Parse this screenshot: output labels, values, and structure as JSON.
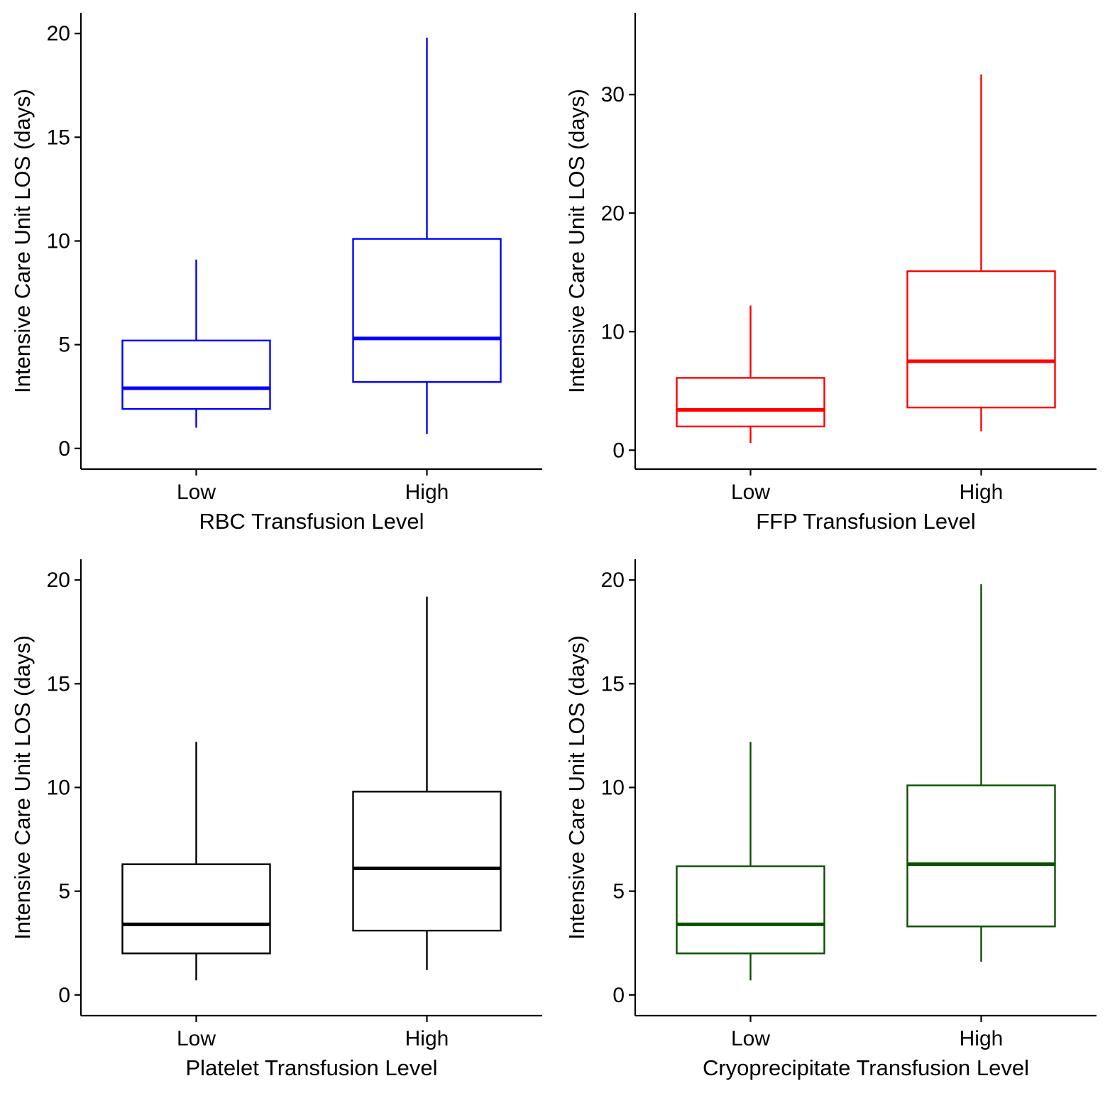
{
  "chart_data": [
    {
      "type": "box",
      "ylabel": "Intensive Care Unit LOS (days)",
      "xlabel": "RBC Transfusion Level",
      "color": "#0000ff",
      "categories": [
        "Low",
        "High"
      ],
      "ylim": [
        -1,
        21
      ],
      "yticks": [
        0,
        5,
        10,
        15,
        20
      ],
      "boxes": [
        {
          "category": "Low",
          "whisker_low": 1.0,
          "q1": 1.9,
          "median": 2.9,
          "q3": 5.2,
          "whisker_high": 9.1
        },
        {
          "category": "High",
          "whisker_low": 0.7,
          "q1": 3.2,
          "median": 5.3,
          "q3": 10.1,
          "whisker_high": 19.8
        }
      ]
    },
    {
      "type": "box",
      "ylabel": "Intensive Care Unit LOS (days)",
      "xlabel": "FFP Transfusion Level",
      "color": "#ff0000",
      "categories": [
        "Low",
        "High"
      ],
      "ylim": [
        -1.6,
        36.9
      ],
      "yticks": [
        0,
        10,
        20,
        30
      ],
      "boxes": [
        {
          "category": "Low",
          "whisker_low": 0.6,
          "q1": 2.0,
          "median": 3.4,
          "q3": 6.1,
          "whisker_high": 12.2
        },
        {
          "category": "High",
          "whisker_low": 1.6,
          "q1": 3.6,
          "median": 7.5,
          "q3": 15.1,
          "whisker_high": 31.7
        }
      ]
    },
    {
      "type": "box",
      "ylabel": "Intensive Care Unit LOS (days)",
      "xlabel": "Platelet Transfusion Level",
      "color": "#000000",
      "categories": [
        "Low",
        "High"
      ],
      "ylim": [
        -1,
        21
      ],
      "yticks": [
        0,
        5,
        10,
        15,
        20
      ],
      "boxes": [
        {
          "category": "Low",
          "whisker_low": 0.7,
          "q1": 2.0,
          "median": 3.4,
          "q3": 6.3,
          "whisker_high": 12.2
        },
        {
          "category": "High",
          "whisker_low": 1.2,
          "q1": 3.1,
          "median": 6.1,
          "q3": 9.8,
          "whisker_high": 19.2
        }
      ]
    },
    {
      "type": "box",
      "ylabel": "Intensive Care Unit LOS (days)",
      "xlabel": "Cryoprecipitate Transfusion Level",
      "color": "#0a5000",
      "categories": [
        "Low",
        "High"
      ],
      "ylim": [
        -1,
        21
      ],
      "yticks": [
        0,
        5,
        10,
        15,
        20
      ],
      "boxes": [
        {
          "category": "Low",
          "whisker_low": 0.7,
          "q1": 2.0,
          "median": 3.4,
          "q3": 6.2,
          "whisker_high": 12.2
        },
        {
          "category": "High",
          "whisker_low": 1.6,
          "q1": 3.3,
          "median": 6.3,
          "q3": 10.1,
          "whisker_high": 19.8
        }
      ]
    }
  ]
}
